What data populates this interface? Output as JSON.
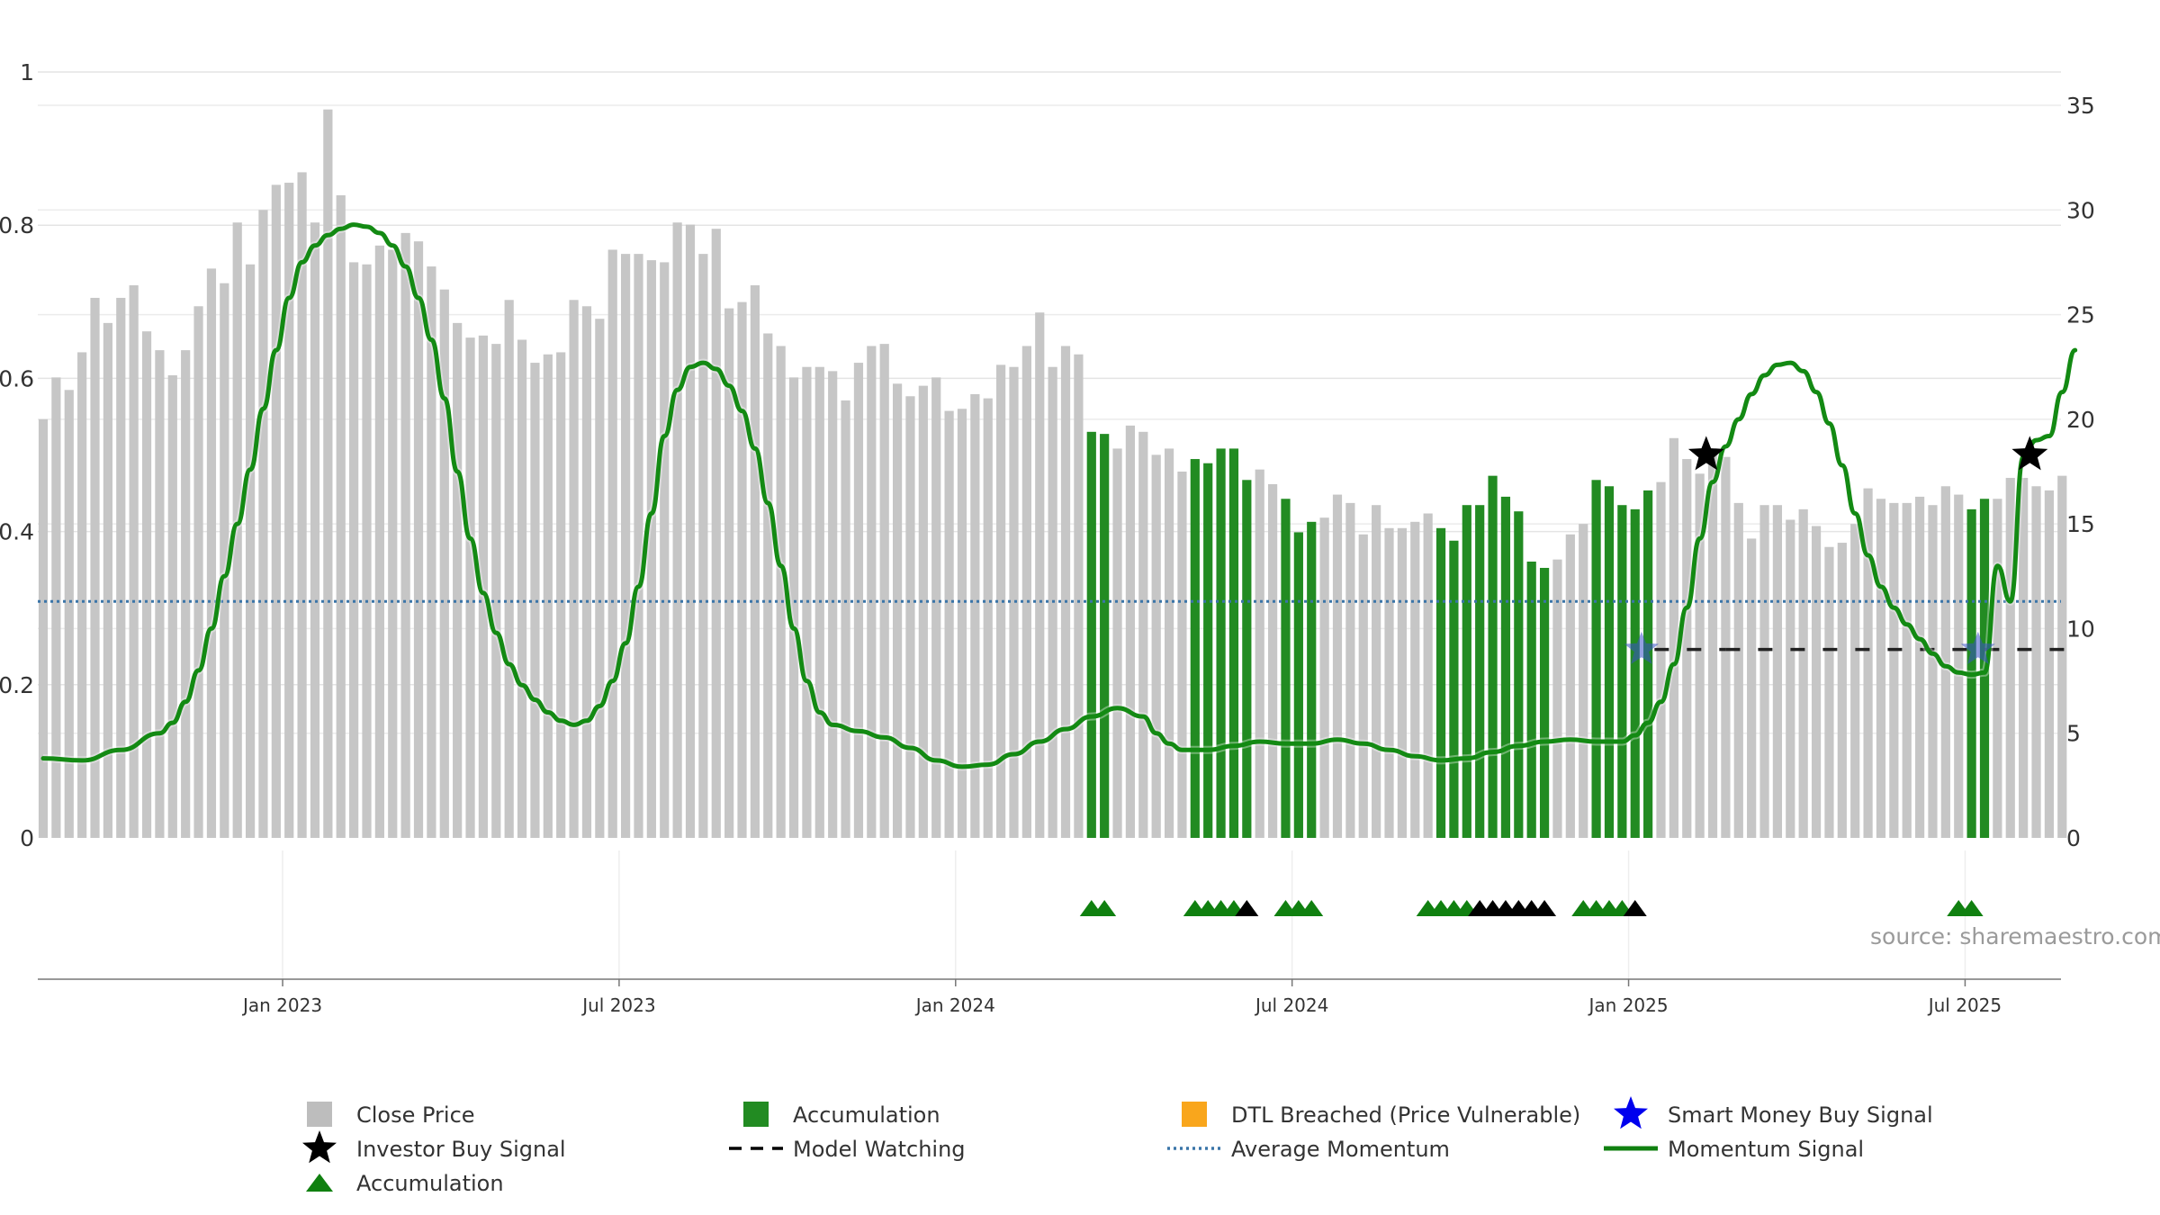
{
  "chart_data": {
    "type": "bar",
    "source": "source: sharemaestro.com",
    "x_tick_labels": [
      "Jan 2023",
      "Jul 2023",
      "Jan 2024",
      "Jul 2024",
      "Jan 2025",
      "Jul 2025"
    ],
    "x_tick_positions": [
      18.5,
      44.5,
      70.5,
      96.5,
      122.5,
      148.5
    ],
    "y_left": {
      "ticks": [
        "0",
        "0.2",
        "0.4",
        "0.6",
        "0.8",
        "1"
      ],
      "values": [
        0,
        0.2,
        0.4,
        0.6,
        0.8,
        1
      ],
      "ylim": [
        0,
        1
      ]
    },
    "y_right": {
      "ticks": [
        "0",
        "5",
        "10",
        "15",
        "20",
        "25",
        "30",
        "35"
      ],
      "values": [
        0,
        5,
        10,
        15,
        20,
        25,
        30,
        35
      ],
      "ylim": [
        0,
        35
      ]
    },
    "close_price": [
      20,
      22,
      21.4,
      23.2,
      25.8,
      24.6,
      25.8,
      26.4,
      24.2,
      23.3,
      22.1,
      23.3,
      25.4,
      27.2,
      26.5,
      29.4,
      27.4,
      30,
      31.2,
      31.3,
      31.8,
      29.4,
      34.8,
      30.7,
      27.5,
      27.4,
      28.3,
      28.1,
      28.9,
      28.5,
      27.3,
      26.2,
      24.6,
      23.9,
      24,
      23.6,
      25.7,
      23.8,
      22.7,
      23.1,
      23.2,
      25.7,
      25.4,
      24.8,
      28.1,
      27.9,
      27.9,
      27.6,
      27.5,
      29.4,
      29.3,
      27.9,
      29.1,
      25.3,
      25.6,
      26.4,
      24.1,
      23.5,
      22,
      22.5,
      22.5,
      22.3,
      20.9,
      22.7,
      23.5,
      23.6,
      21.7,
      21.1,
      21.6,
      22,
      20.4,
      20.5,
      21.2,
      21,
      22.6,
      22.5,
      23.5,
      25.1,
      22.5,
      23.5,
      23.1,
      19.4,
      19.3,
      18.6,
      19.7,
      19.4,
      18.3,
      18.6,
      17.5,
      18.1,
      17.9,
      18.6,
      18.6,
      17.1,
      17.6,
      16.9,
      16.2,
      14.6,
      15.1,
      15.3,
      16.4,
      16,
      14.5,
      15.9,
      14.8,
      14.8,
      15.1,
      15.5,
      14.8,
      14.2,
      15.9,
      15.9,
      17.3,
      16.3,
      15.6,
      13.2,
      12.9,
      13.3,
      14.5,
      15,
      17.1,
      16.8,
      15.9,
      15.7,
      16.6,
      17,
      19.1,
      18.1,
      17.4,
      18.4,
      18.2,
      16,
      14.3,
      15.9,
      15.9,
      15.2,
      15.7,
      14.9,
      13.9,
      14.1,
      15,
      16.7,
      16.2,
      16,
      16,
      16.3,
      15.9,
      16.8,
      16.4,
      15.7,
      16.2,
      16.2,
      17.2,
      17.2,
      16.8,
      16.6,
      17.3
    ],
    "accumulation_bar_ranges": [
      [
        81,
        82
      ],
      [
        89,
        93
      ],
      [
        96,
        98
      ],
      [
        108,
        116
      ],
      [
        120,
        124
      ],
      [
        149,
        150
      ]
    ],
    "momentum_signal": [
      [
        0,
        3.8
      ],
      [
        3,
        3.7
      ],
      [
        6,
        4.2
      ],
      [
        9,
        5
      ],
      [
        10,
        5.5
      ],
      [
        11,
        6.5
      ],
      [
        12,
        8
      ],
      [
        13,
        10
      ],
      [
        14,
        12.5
      ],
      [
        15,
        15
      ],
      [
        16,
        17.6
      ],
      [
        17,
        20.5
      ],
      [
        18,
        23.3
      ],
      [
        19,
        25.8
      ],
      [
        20,
        27.5
      ],
      [
        21,
        28.3
      ],
      [
        22,
        28.8
      ],
      [
        23,
        29.1
      ],
      [
        24,
        29.3
      ],
      [
        25,
        29.2
      ],
      [
        26,
        28.9
      ],
      [
        27,
        28.3
      ],
      [
        28,
        27.3
      ],
      [
        29,
        25.8
      ],
      [
        30,
        23.8
      ],
      [
        31,
        21
      ],
      [
        32,
        17.5
      ],
      [
        33,
        14.3
      ],
      [
        34,
        11.7
      ],
      [
        35,
        9.8
      ],
      [
        36,
        8.3
      ],
      [
        37,
        7.3
      ],
      [
        38,
        6.6
      ],
      [
        39,
        6
      ],
      [
        40,
        5.6
      ],
      [
        41,
        5.4
      ],
      [
        42,
        5.6
      ],
      [
        43,
        6.3
      ],
      [
        44,
        7.5
      ],
      [
        45,
        9.3
      ],
      [
        46,
        12
      ],
      [
        47,
        15.5
      ],
      [
        48,
        19.2
      ],
      [
        49,
        21.4
      ],
      [
        50,
        22.5
      ],
      [
        51,
        22.7
      ],
      [
        52,
        22.4
      ],
      [
        53,
        21.6
      ],
      [
        54,
        20.4
      ],
      [
        55,
        18.6
      ],
      [
        56,
        16
      ],
      [
        57,
        13
      ],
      [
        58,
        10
      ],
      [
        59,
        7.5
      ],
      [
        60,
        6
      ],
      [
        61,
        5.4
      ],
      [
        63,
        5.1
      ],
      [
        65,
        4.8
      ],
      [
        67,
        4.3
      ],
      [
        69,
        3.7
      ],
      [
        71,
        3.4
      ],
      [
        73,
        3.5
      ],
      [
        75,
        4
      ],
      [
        77,
        4.6
      ],
      [
        79,
        5.2
      ],
      [
        81,
        5.8
      ],
      [
        83,
        6.2
      ],
      [
        85,
        5.8
      ],
      [
        86,
        5
      ],
      [
        87,
        4.5
      ],
      [
        88,
        4.2
      ],
      [
        90,
        4.2
      ],
      [
        92,
        4.4
      ],
      [
        94,
        4.6
      ],
      [
        96,
        4.5
      ],
      [
        98,
        4.5
      ],
      [
        100,
        4.7
      ],
      [
        102,
        4.5
      ],
      [
        104,
        4.2
      ],
      [
        106,
        3.9
      ],
      [
        108,
        3.7
      ],
      [
        110,
        3.8
      ],
      [
        112,
        4.1
      ],
      [
        114,
        4.4
      ],
      [
        116,
        4.6
      ],
      [
        118,
        4.7
      ],
      [
        120,
        4.6
      ],
      [
        122,
        4.6
      ],
      [
        123,
        4.9
      ],
      [
        124,
        5.5
      ],
      [
        125,
        6.5
      ],
      [
        126,
        8.3
      ],
      [
        127,
        11
      ],
      [
        128,
        14.3
      ],
      [
        129,
        17
      ],
      [
        130,
        18.7
      ],
      [
        131,
        20
      ],
      [
        132,
        21.2
      ],
      [
        133,
        22.1
      ],
      [
        134,
        22.6
      ],
      [
        135,
        22.7
      ],
      [
        136,
        22.3
      ],
      [
        137,
        21.3
      ],
      [
        138,
        19.8
      ],
      [
        139,
        17.8
      ],
      [
        140,
        15.5
      ],
      [
        141,
        13.5
      ],
      [
        142,
        12
      ],
      [
        143,
        11
      ],
      [
        144,
        10.2
      ],
      [
        145,
        9.5
      ],
      [
        146,
        8.8
      ],
      [
        147,
        8.2
      ],
      [
        148,
        7.9
      ],
      [
        149,
        7.8
      ],
      [
        150,
        7.9
      ],
      [
        151,
        13
      ],
      [
        152,
        11.3
      ],
      [
        153,
        18.2
      ],
      [
        154,
        19
      ],
      [
        155,
        19.2
      ],
      [
        156,
        21.3
      ],
      [
        157,
        23.3
      ]
    ],
    "average_momentum": 11.3,
    "model_watching": {
      "value": 9,
      "x_ranges": [
        [
          124.5,
          130
        ],
        [
          130,
          156.5
        ]
      ]
    },
    "investor_buy_signals": [
      [
        128.5,
        18.3
      ],
      [
        153.5,
        18.3
      ]
    ],
    "smart_money_buy_signals": [
      [
        123.5,
        9
      ],
      [
        149.5,
        9
      ]
    ],
    "accumulation_markers_green": [
      81,
      82,
      89,
      90,
      91,
      92,
      96,
      97,
      98,
      107,
      108,
      109,
      110,
      119,
      120,
      121,
      122,
      148,
      149
    ],
    "accumulation_markers_black": [
      93,
      111,
      112,
      113,
      114,
      115,
      116,
      123
    ],
    "legend": [
      {
        "label": "Close Price",
        "color": "#bdbdbd",
        "icon": "square"
      },
      {
        "label": "Accumulation",
        "color": "#228b22",
        "icon": "square"
      },
      {
        "label": "DTL Breached (Price Vulnerable)",
        "color": "#f9a61c",
        "icon": "square"
      },
      {
        "label": "Smart Money Buy Signal",
        "color": "#0000ee",
        "icon": "star"
      },
      {
        "label": "Investor Buy Signal",
        "color": "#000000",
        "icon": "star"
      },
      {
        "label": "Model Watching",
        "color": "#000000",
        "icon": "dash"
      },
      {
        "label": "Average Momentum",
        "color": "#3a75a8",
        "icon": "dotted"
      },
      {
        "label": "Momentum Signal",
        "color": "#108010",
        "icon": "line"
      },
      {
        "label": "Accumulation",
        "color": "#108010",
        "icon": "triangle"
      }
    ]
  }
}
